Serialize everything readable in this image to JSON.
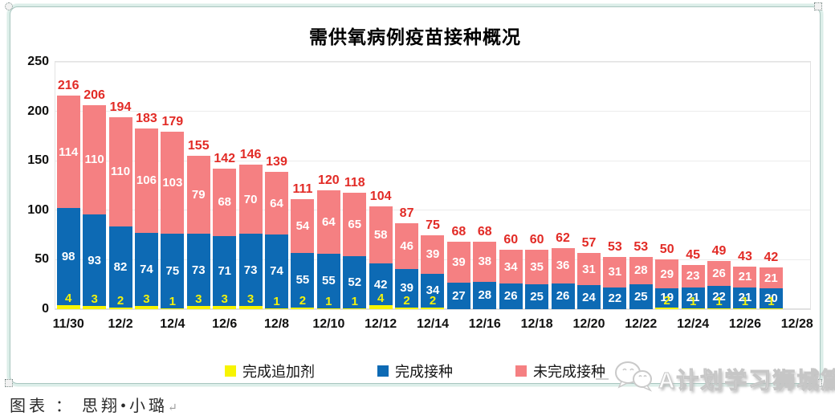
{
  "chart_data": {
    "type": "bar",
    "stacked": true,
    "title": "需供氧病例疫苗接种概况",
    "ylim": [
      0,
      250
    ],
    "yticks": [
      0,
      50,
      100,
      150,
      200,
      250
    ],
    "grid": "horizontal",
    "legend_position": "bottom",
    "x_tick_labels": [
      "11/30",
      "12/2",
      "12/4",
      "12/6",
      "12/8",
      "12/10",
      "12/12",
      "12/14",
      "12/16",
      "12/18",
      "12/20",
      "12/22",
      "12/24",
      "12/26",
      "12/28"
    ],
    "series_legend": [
      {
        "name": "完成追加剂",
        "color": "#f7f402"
      },
      {
        "name": "完成接种",
        "color": "#0d6ab4"
      },
      {
        "name": "未完成接种",
        "color": "#f58082"
      }
    ],
    "colors": {
      "booster": "#f7f402",
      "vaccinated": "#0d6ab4",
      "unvaccinated": "#f58082",
      "total_label": "#e22b26",
      "segment_label": "#ffffff",
      "booster_label": "#f2f20c"
    },
    "bars": [
      {
        "total": 216,
        "unvaccinated": 114,
        "vaccinated": 98,
        "booster": 4
      },
      {
        "total": 206,
        "unvaccinated": 110,
        "vaccinated": 93,
        "booster": 3
      },
      {
        "total": 194,
        "unvaccinated": 110,
        "vaccinated": 82,
        "booster": 2
      },
      {
        "total": 183,
        "unvaccinated": 106,
        "vaccinated": 74,
        "booster": 3
      },
      {
        "total": 179,
        "unvaccinated": 103,
        "vaccinated": 75,
        "booster": 1
      },
      {
        "total": 155,
        "unvaccinated": 79,
        "vaccinated": 73,
        "booster": 3
      },
      {
        "total": 142,
        "unvaccinated": 68,
        "vaccinated": 71,
        "booster": 3
      },
      {
        "total": 146,
        "unvaccinated": 70,
        "vaccinated": 73,
        "booster": 3
      },
      {
        "total": 139,
        "unvaccinated": 64,
        "vaccinated": 74,
        "booster": 1
      },
      {
        "total": 111,
        "unvaccinated": 54,
        "vaccinated": 55,
        "booster": 2
      },
      {
        "total": 120,
        "unvaccinated": 64,
        "vaccinated": 55,
        "booster": 1
      },
      {
        "total": 118,
        "unvaccinated": 65,
        "vaccinated": 52,
        "booster": 1
      },
      {
        "total": 104,
        "unvaccinated": 58,
        "vaccinated": 42,
        "booster": 4
      },
      {
        "total": 87,
        "unvaccinated": 46,
        "vaccinated": 39,
        "booster": 2
      },
      {
        "total": 75,
        "unvaccinated": 39,
        "vaccinated": 34,
        "booster": 2
      },
      {
        "total": 68,
        "unvaccinated": 39,
        "vaccinated": 27,
        "booster": null
      },
      {
        "total": 68,
        "unvaccinated": 38,
        "vaccinated": 28,
        "booster": null
      },
      {
        "total": 60,
        "unvaccinated": 34,
        "vaccinated": 26,
        "booster": null
      },
      {
        "total": 60,
        "unvaccinated": 35,
        "vaccinated": 25,
        "booster": null
      },
      {
        "total": 62,
        "unvaccinated": 36,
        "vaccinated": 26,
        "booster": null
      },
      {
        "total": 57,
        "unvaccinated": 31,
        "vaccinated": 24,
        "booster": null
      },
      {
        "total": 53,
        "unvaccinated": 31,
        "vaccinated": 22,
        "booster": null
      },
      {
        "total": 53,
        "unvaccinated": 28,
        "vaccinated": 25,
        "booster": null
      },
      {
        "total": 50,
        "unvaccinated": 29,
        "vaccinated": 19,
        "booster": 2
      },
      {
        "total": 45,
        "unvaccinated": 23,
        "vaccinated": 21,
        "booster": 1
      },
      {
        "total": 49,
        "unvaccinated": 26,
        "vaccinated": 22,
        "booster": 1
      },
      {
        "total": 43,
        "unvaccinated": 21,
        "vaccinated": 21,
        "booster": 1
      },
      {
        "total": 42,
        "unvaccinated": 21,
        "vaccinated": 20,
        "booster": 1
      }
    ]
  },
  "footer": {
    "caption": "图表 ： 思翔•小璐",
    "caption_mark": "↵"
  },
  "watermark": {
    "text": "A计划学习狮城篇",
    "icon": "wechat-icon"
  }
}
